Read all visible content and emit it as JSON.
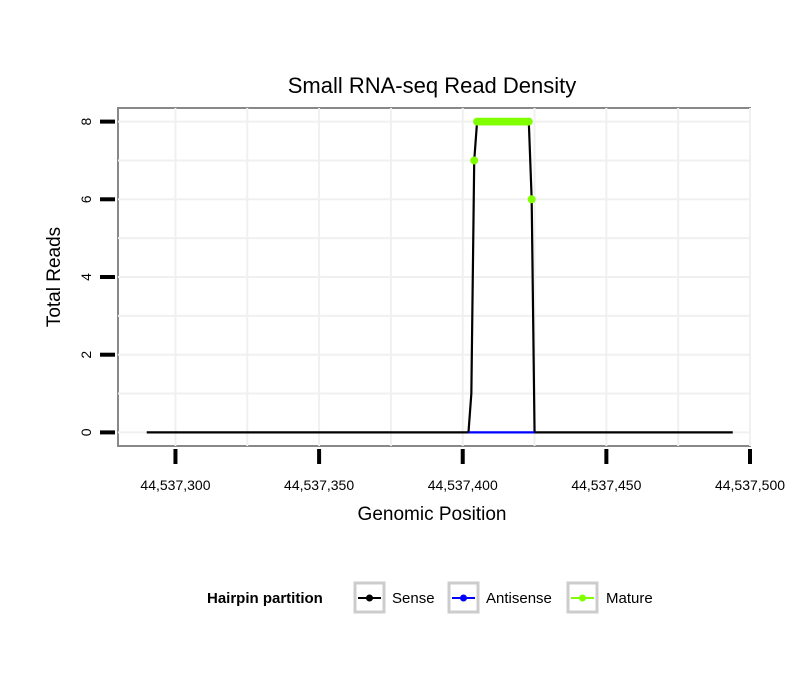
{
  "chart_data": {
    "type": "line",
    "title": "Small RNA-seq Read Density",
    "xlabel": "Genomic Position",
    "ylabel": "Total Reads",
    "xlim": [
      44537280,
      44537500
    ],
    "ylim": [
      -0.35,
      8.35
    ],
    "xticks": [
      44537300,
      44537350,
      44537400,
      44537450,
      44537500
    ],
    "xtick_labels": [
      "44,537,300",
      "44,537,350",
      "44,537,400",
      "44,537,450",
      "44,537,500"
    ],
    "yticks": [
      0,
      2,
      4,
      6,
      8
    ],
    "ytick_labels": [
      "0",
      "2",
      "4",
      "6",
      "8"
    ],
    "grid": true,
    "legend": {
      "title": "Hairpin partition",
      "position": "bottom",
      "entries": [
        {
          "name": "Sense",
          "color": "#000000"
        },
        {
          "name": "Antisense",
          "color": "#0000ff"
        },
        {
          "name": "Mature",
          "color": "#7fff00"
        }
      ]
    },
    "series": [
      {
        "name": "Sense",
        "color": "#000000",
        "x": [
          44537290,
          44537402,
          44537403,
          44537404,
          44537405,
          44537423,
          44537424,
          44537425,
          44537494
        ],
        "y": [
          0,
          0,
          1,
          7,
          8,
          8,
          6,
          0,
          0
        ]
      },
      {
        "name": "Antisense",
        "color": "#0000ff",
        "x": [
          44537402,
          44537425
        ],
        "y": [
          0,
          0
        ]
      },
      {
        "name": "Mature",
        "color": "#7fff00",
        "x": [
          44537404,
          44537405,
          44537406,
          44537407,
          44537408,
          44537409,
          44537410,
          44537411,
          44537412,
          44537413,
          44537414,
          44537415,
          44537416,
          44537417,
          44537418,
          44537419,
          44537420,
          44537421,
          44537422,
          44537423,
          44537424
        ],
        "y": [
          7,
          8,
          8,
          8,
          8,
          8,
          8,
          8,
          8,
          8,
          8,
          8,
          8,
          8,
          8,
          8,
          8,
          8,
          8,
          8,
          6
        ]
      }
    ]
  }
}
